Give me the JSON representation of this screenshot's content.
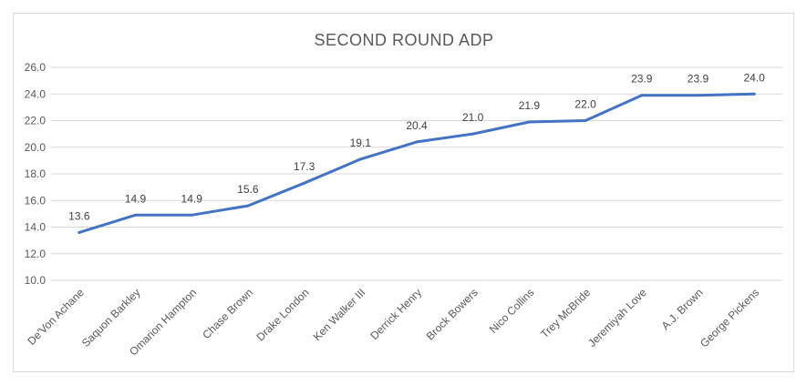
{
  "chart_data": {
    "type": "line",
    "title": "SECOND ROUND ADP",
    "categories": [
      "De'Von Achane",
      "Saquon Barkley",
      "Omarion Hampton",
      "Chase Brown",
      "Drake London",
      "Ken Walker III",
      "Derrick Henry",
      "Brock Bowers",
      "Nico Collins",
      "Trey McBride",
      "Jeremiyah Love",
      "A.J. Brown",
      "George Pickens"
    ],
    "series": [
      {
        "values": [
          13.6,
          14.9,
          14.9,
          15.6,
          17.3,
          19.1,
          20.4,
          21.0,
          21.9,
          22.0,
          23.9,
          23.9,
          24.0
        ]
      }
    ],
    "data_labels": [
      "13.6",
      "14.9",
      "14.9",
      "15.6",
      "17.3",
      "19.1",
      "20.4",
      "21.0",
      "21.9",
      "22.0",
      "23.9",
      "23.9",
      "24.0"
    ],
    "ylim": [
      10,
      26
    ],
    "y_ticks": [
      "10.0",
      "12.0",
      "14.0",
      "16.0",
      "18.0",
      "20.0",
      "22.0",
      "24.0",
      "26.0"
    ],
    "grid": true,
    "legend": "none",
    "line_color": "#4472c4"
  }
}
